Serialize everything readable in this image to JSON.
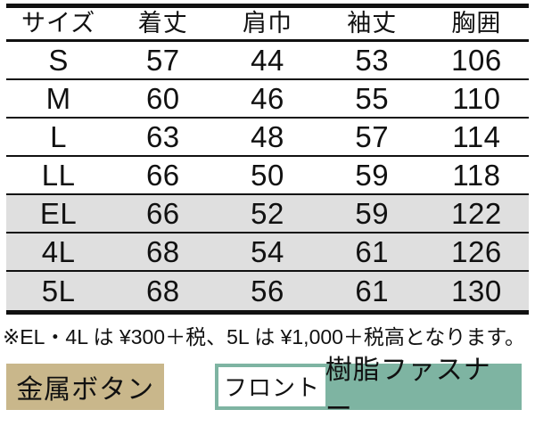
{
  "table": {
    "headers": [
      "サイズ",
      "着丈",
      "肩巾",
      "袖丈",
      "胸囲"
    ],
    "rows": [
      {
        "cells": [
          "S",
          "57",
          "44",
          "53",
          "106"
        ],
        "shaded": false
      },
      {
        "cells": [
          "M",
          "60",
          "46",
          "55",
          "110"
        ],
        "shaded": false
      },
      {
        "cells": [
          "L",
          "63",
          "48",
          "57",
          "114"
        ],
        "shaded": false
      },
      {
        "cells": [
          "LL",
          "66",
          "50",
          "59",
          "118"
        ],
        "shaded": false
      },
      {
        "cells": [
          "EL",
          "66",
          "52",
          "59",
          "122"
        ],
        "shaded": true
      },
      {
        "cells": [
          "4L",
          "68",
          "54",
          "61",
          "126"
        ],
        "shaded": true
      },
      {
        "cells": [
          "5L",
          "68",
          "56",
          "61",
          "130"
        ],
        "shaded": true
      }
    ]
  },
  "note": "※EL・4L は ¥300＋税、5L は ¥1,000＋税高となります。",
  "badges": {
    "metal_button_label": "金属ボタン",
    "front_label": "フロント",
    "fastener_label": "樹脂ファスナー"
  },
  "colors": {
    "line": "#111111",
    "shaded_row": "#dfdfdf",
    "metal_badge_bg": "#c9b78b",
    "front_badge_green": "#7eb4a2"
  }
}
